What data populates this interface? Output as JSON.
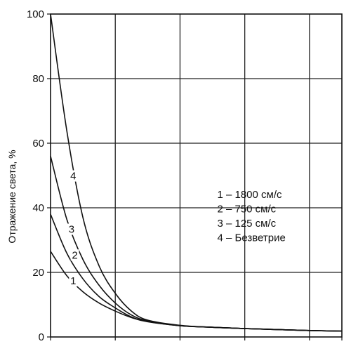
{
  "chart_data": {
    "type": "line",
    "title": "",
    "xlabel": "",
    "ylabel": "Отражение света, %",
    "ylim": [
      0,
      100
    ],
    "xlim": [
      0,
      90
    ],
    "grid": true,
    "y_ticks": [
      0,
      20,
      40,
      60,
      80,
      100
    ],
    "x_gridlines": [
      0,
      20,
      40,
      60,
      80,
      90
    ],
    "legend_position": "right",
    "legend": [
      "1 – 1800 см/с",
      "2 – 750 см/с",
      "3 – 125 см/с",
      "4 – Безветрие"
    ],
    "series": [
      {
        "name": "1",
        "x": [
          0,
          5,
          10,
          15,
          20,
          25,
          30,
          40,
          50,
          60,
          70,
          80,
          90
        ],
        "values": [
          26.5,
          19,
          14,
          10.5,
          8,
          6,
          4.7,
          3.5,
          3,
          2.6,
          2.3,
          2,
          1.8
        ],
        "label_at": [
          7,
          16.5
        ]
      },
      {
        "name": "2",
        "x": [
          0,
          5,
          10,
          15,
          20,
          25,
          30,
          40,
          50,
          60,
          70,
          80,
          90
        ],
        "values": [
          38,
          26,
          18,
          12.5,
          9,
          6.2,
          4.8,
          3.5,
          3,
          2.6,
          2.3,
          2,
          1.8
        ],
        "label_at": [
          7.5,
          24.5
        ]
      },
      {
        "name": "3",
        "x": [
          0,
          5,
          10,
          15,
          20,
          25,
          30,
          40,
          50,
          60,
          70,
          80,
          90
        ],
        "values": [
          56,
          36.5,
          24,
          16,
          10.5,
          6.8,
          5,
          3.5,
          3,
          2.6,
          2.3,
          2,
          1.8
        ],
        "label_at": [
          6.5,
          32.5
        ]
      },
      {
        "name": "4",
        "x": [
          0,
          5,
          10,
          15,
          20,
          25,
          30,
          40,
          50,
          60,
          70,
          80,
          90
        ],
        "values": [
          100,
          64,
          37,
          22,
          13.5,
          8,
          5.2,
          3.6,
          3,
          2.6,
          2.3,
          2,
          1.8
        ],
        "label_at": [
          7,
          49
        ]
      }
    ]
  }
}
